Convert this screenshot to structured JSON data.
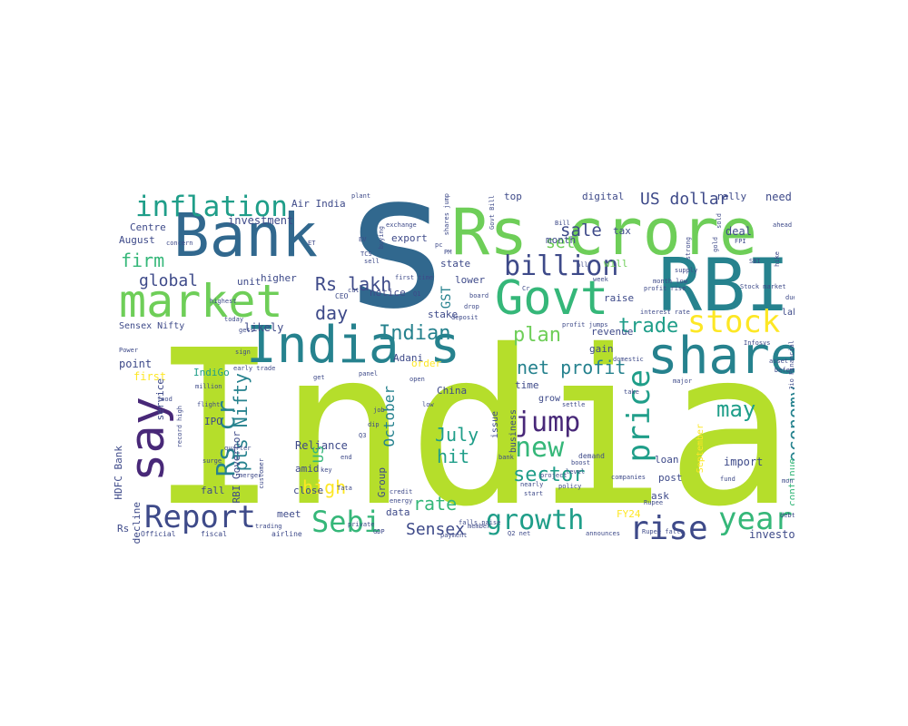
{
  "palette": {
    "lime": "#b5de2b",
    "green": "#6ece58",
    "mint": "#35b779",
    "teal": "#1f9e89",
    "cyan": "#26828e",
    "blue": "#31688e",
    "indigo": "#3e4a89",
    "purple": "#482878",
    "dark": "#440154",
    "yellow": "#fde725"
  },
  "words": [
    {
      "id": "w0",
      "text": "India",
      "color": "lime"
    },
    {
      "id": "w1",
      "text": "s",
      "color": "blue"
    },
    {
      "id": "w2",
      "text": "Bank",
      "color": "blue"
    },
    {
      "id": "w3",
      "text": "Rs crore",
      "color": "green"
    },
    {
      "id": "w4",
      "text": "RBI",
      "color": "cyan"
    },
    {
      "id": "w5",
      "text": "Govt",
      "color": "mint"
    },
    {
      "id": "w6",
      "text": "market",
      "color": "green"
    },
    {
      "id": "w7",
      "text": "India s",
      "color": "cyan"
    },
    {
      "id": "w8",
      "text": "share",
      "color": "cyan"
    },
    {
      "id": "w9",
      "text": "say",
      "color": "purple"
    },
    {
      "id": "w10",
      "text": "inflation",
      "color": "teal"
    },
    {
      "id": "w11",
      "text": "billion",
      "color": "indigo"
    },
    {
      "id": "w12",
      "text": "stock",
      "color": "yellow"
    },
    {
      "id": "w13",
      "text": "Report",
      "color": "indigo"
    },
    {
      "id": "w14",
      "text": "growth",
      "color": "teal"
    },
    {
      "id": "w15",
      "text": "Sebi",
      "color": "mint"
    },
    {
      "id": "w16",
      "text": "rise",
      "color": "indigo"
    },
    {
      "id": "w17",
      "text": "year",
      "color": "mint"
    },
    {
      "id": "w18",
      "text": "price",
      "color": "teal"
    },
    {
      "id": "w19",
      "text": "jump",
      "color": "purple"
    },
    {
      "id": "w20",
      "text": "new",
      "color": "mint"
    },
    {
      "id": "w21",
      "text": "Rs cr",
      "color": "cyan"
    },
    {
      "id": "w22",
      "text": "global",
      "color": "indigo"
    },
    {
      "id": "w23",
      "text": "Rs lakh",
      "color": "indigo"
    },
    {
      "id": "w24",
      "text": "US dollar",
      "color": "indigo"
    },
    {
      "id": "w25",
      "text": "sale",
      "color": "indigo"
    },
    {
      "id": "w26",
      "text": "firm",
      "color": "mint"
    },
    {
      "id": "w27",
      "text": "trade",
      "color": "teal"
    },
    {
      "id": "w28",
      "text": "net profit",
      "color": "cyan"
    },
    {
      "id": "w29",
      "text": "Indian",
      "color": "cyan"
    },
    {
      "id": "w30",
      "text": "plan",
      "color": "green"
    },
    {
      "id": "w31",
      "text": "economy",
      "color": "cyan"
    },
    {
      "id": "w32",
      "text": "may",
      "color": "teal"
    },
    {
      "id": "w33",
      "text": "sector",
      "color": "teal"
    },
    {
      "id": "w34",
      "text": "Sensex",
      "color": "indigo"
    },
    {
      "id": "w35",
      "text": "rate",
      "color": "mint"
    },
    {
      "id": "w36",
      "text": "high",
      "color": "yellow"
    },
    {
      "id": "w37",
      "text": "July",
      "color": "teal"
    },
    {
      "id": "w38",
      "text": "hit",
      "color": "teal"
    },
    {
      "id": "w39",
      "text": "day",
      "color": "indigo"
    },
    {
      "id": "w40",
      "text": "set",
      "color": "green"
    },
    {
      "id": "w41",
      "text": "investment",
      "color": "indigo"
    },
    {
      "id": "w42",
      "text": "Centre",
      "color": "indigo"
    },
    {
      "id": "w43",
      "text": "August",
      "color": "indigo"
    },
    {
      "id": "w44",
      "text": "Air India",
      "color": "indigo"
    },
    {
      "id": "w45",
      "text": "export",
      "color": "indigo"
    },
    {
      "id": "w46",
      "text": "top",
      "color": "indigo"
    },
    {
      "id": "w47",
      "text": "digital",
      "color": "indigo"
    },
    {
      "id": "w48",
      "text": "rally",
      "color": "indigo"
    },
    {
      "id": "w49",
      "text": "need",
      "color": "indigo"
    },
    {
      "id": "w50",
      "text": "state",
      "color": "indigo"
    },
    {
      "id": "w51",
      "text": "lower",
      "color": "indigo"
    },
    {
      "id": "w52",
      "text": "month",
      "color": "indigo"
    },
    {
      "id": "w53",
      "text": "tax",
      "color": "indigo"
    },
    {
      "id": "w54",
      "text": "deal",
      "color": "indigo"
    },
    {
      "id": "w55",
      "text": "will",
      "color": "green"
    },
    {
      "id": "w56",
      "text": "raise",
      "color": "indigo"
    },
    {
      "id": "w57",
      "text": "higher",
      "color": "indigo"
    },
    {
      "id": "w58",
      "text": "unit",
      "color": "indigo"
    },
    {
      "id": "w59",
      "text": "likely",
      "color": "indigo"
    },
    {
      "id": "w60",
      "text": "Sensex Nifty",
      "color": "indigo"
    },
    {
      "id": "w61",
      "text": "notice",
      "color": "indigo"
    },
    {
      "id": "w62",
      "text": "stake",
      "color": "indigo"
    },
    {
      "id": "w63",
      "text": "Adani",
      "color": "indigo"
    },
    {
      "id": "w64",
      "text": "gain",
      "color": "indigo"
    },
    {
      "id": "w65",
      "text": "revenue",
      "color": "indigo"
    },
    {
      "id": "w66",
      "text": "lakh crore",
      "color": "indigo"
    },
    {
      "id": "w67",
      "text": "point",
      "color": "indigo"
    },
    {
      "id": "w68",
      "text": "first",
      "color": "yellow"
    },
    {
      "id": "w69",
      "text": "IndiGo",
      "color": "teal"
    },
    {
      "id": "w70",
      "text": "order",
      "color": "yellow"
    },
    {
      "id": "w71",
      "text": "time",
      "color": "indigo"
    },
    {
      "id": "w72",
      "text": "grow",
      "color": "indigo"
    },
    {
      "id": "w73",
      "text": "issue",
      "color": "indigo"
    },
    {
      "id": "w74",
      "text": "business",
      "color": "indigo"
    },
    {
      "id": "w75",
      "text": "September",
      "color": "yellow"
    },
    {
      "id": "w76",
      "text": "loan",
      "color": "indigo"
    },
    {
      "id": "w77",
      "text": "import",
      "color": "indigo"
    },
    {
      "id": "w78",
      "text": "continue",
      "color": "mint"
    },
    {
      "id": "w79",
      "text": "post",
      "color": "indigo"
    },
    {
      "id": "w80",
      "text": "ask",
      "color": "indigo"
    },
    {
      "id": "w81",
      "text": "China",
      "color": "indigo"
    },
    {
      "id": "w82",
      "text": "Reliance",
      "color": "indigo"
    },
    {
      "id": "w83",
      "text": "amid",
      "color": "indigo"
    },
    {
      "id": "w84",
      "text": "close",
      "color": "indigo"
    },
    {
      "id": "w85",
      "text": "IPO",
      "color": "indigo"
    },
    {
      "id": "w86",
      "text": "fall",
      "color": "indigo"
    },
    {
      "id": "w87",
      "text": "decline",
      "color": "indigo"
    },
    {
      "id": "w88",
      "text": "meet",
      "color": "indigo"
    },
    {
      "id": "w89",
      "text": "data",
      "color": "indigo"
    },
    {
      "id": "w90",
      "text": "investor",
      "color": "indigo"
    },
    {
      "id": "w91",
      "text": "FY24",
      "color": "yellow"
    },
    {
      "id": "w92",
      "text": "Group",
      "color": "indigo"
    },
    {
      "id": "w93",
      "text": "pts Nifty",
      "color": "cyan"
    },
    {
      "id": "w94",
      "text": "October",
      "color": "cyan"
    },
    {
      "id": "w95",
      "text": "GST",
      "color": "cyan"
    },
    {
      "id": "w96",
      "text": "HDFC Bank",
      "color": "indigo"
    },
    {
      "id": "w97",
      "text": "service",
      "color": "indigo"
    },
    {
      "id": "w98",
      "text": "RBI Governor",
      "color": "indigo"
    },
    {
      "id": "w99",
      "text": "US",
      "color": "mint"
    },
    {
      "id": "w100",
      "text": "Rs",
      "color": "indigo"
    },
    {
      "id": "w101",
      "text": "Official",
      "color": "indigo"
    },
    {
      "id": "w102",
      "text": "fiscal",
      "color": "indigo"
    },
    {
      "id": "w103",
      "text": "airline",
      "color": "indigo"
    },
    {
      "id": "w104",
      "text": "CEO",
      "color": "indigo"
    },
    {
      "id": "w105",
      "text": "exchange",
      "color": "indigo"
    },
    {
      "id": "w106",
      "text": "board",
      "color": "indigo"
    },
    {
      "id": "w107",
      "text": "drop",
      "color": "indigo"
    },
    {
      "id": "w108",
      "text": "deposit",
      "color": "indigo"
    },
    {
      "id": "w109",
      "text": "interest rate",
      "color": "indigo"
    },
    {
      "id": "w110",
      "text": "Stock market",
      "color": "indigo"
    },
    {
      "id": "w111",
      "text": "profit rise",
      "color": "indigo"
    },
    {
      "id": "w112",
      "text": "profit jumps",
      "color": "indigo"
    },
    {
      "id": "w113",
      "text": "Infosys",
      "color": "indigo"
    },
    {
      "id": "w114",
      "text": "Power",
      "color": "indigo"
    },
    {
      "id": "w115",
      "text": "sign",
      "color": "indigo"
    },
    {
      "id": "w116",
      "text": "demand",
      "color": "indigo"
    },
    {
      "id": "w117",
      "text": "energy",
      "color": "indigo"
    },
    {
      "id": "w118",
      "text": "credit",
      "color": "indigo"
    },
    {
      "id": "w119",
      "text": "merger",
      "color": "indigo"
    },
    {
      "id": "w120",
      "text": "flight",
      "color": "indigo"
    },
    {
      "id": "w121",
      "text": "surge",
      "color": "indigo"
    },
    {
      "id": "w122",
      "text": "quarter",
      "color": "indigo"
    },
    {
      "id": "w123",
      "text": "trading",
      "color": "indigo"
    },
    {
      "id": "w124",
      "text": "customer",
      "color": "indigo"
    },
    {
      "id": "w125",
      "text": "falls paise",
      "color": "indigo"
    },
    {
      "id": "w126",
      "text": "companies",
      "color": "indigo"
    },
    {
      "id": "w127",
      "text": "Rupee falls",
      "color": "indigo"
    },
    {
      "id": "w128",
      "text": "payment",
      "color": "indigo"
    },
    {
      "id": "w129",
      "text": "announces",
      "color": "indigo"
    },
    {
      "id": "w130",
      "text": "start",
      "color": "indigo"
    },
    {
      "id": "w131",
      "text": "nearly",
      "color": "indigo"
    },
    {
      "id": "w132",
      "text": "project",
      "color": "indigo"
    },
    {
      "id": "w133",
      "text": "policy",
      "color": "indigo"
    },
    {
      "id": "w134",
      "text": "level",
      "color": "indigo"
    },
    {
      "id": "w135",
      "text": "boost",
      "color": "indigo"
    },
    {
      "id": "w136",
      "text": "fund",
      "color": "indigo"
    },
    {
      "id": "w137",
      "text": "asset",
      "color": "indigo"
    },
    {
      "id": "w138",
      "text": "month high",
      "color": "indigo"
    },
    {
      "id": "w139",
      "text": "Tata",
      "color": "indigo"
    },
    {
      "id": "w140",
      "text": "panel",
      "color": "indigo"
    },
    {
      "id": "w141",
      "text": "early trade",
      "color": "indigo"
    },
    {
      "id": "w142",
      "text": "million",
      "color": "indigo"
    },
    {
      "id": "w143",
      "text": "major",
      "color": "indigo"
    },
    {
      "id": "w144",
      "text": "Jio Financial",
      "color": "indigo"
    },
    {
      "id": "w145",
      "text": "domestic",
      "color": "indigo"
    },
    {
      "id": "w146",
      "text": "month low",
      "color": "indigo"
    },
    {
      "id": "w147",
      "text": "sold",
      "color": "indigo"
    },
    {
      "id": "w148",
      "text": "supply",
      "color": "indigo"
    },
    {
      "id": "w149",
      "text": "plant",
      "color": "indigo"
    },
    {
      "id": "w150",
      "text": "shares jump",
      "color": "indigo"
    },
    {
      "id": "w151",
      "text": "Bill",
      "color": "indigo"
    },
    {
      "id": "w152",
      "text": "sell",
      "color": "indigo"
    },
    {
      "id": "w153",
      "text": "highest",
      "color": "indigo"
    },
    {
      "id": "w154",
      "text": "today",
      "color": "indigo"
    },
    {
      "id": "w155",
      "text": "gets",
      "color": "indigo"
    },
    {
      "id": "w156",
      "text": "concern",
      "color": "indigo"
    },
    {
      "id": "w157",
      "text": "strong",
      "color": "indigo"
    },
    {
      "id": "w158",
      "text": "gold",
      "color": "indigo"
    },
    {
      "id": "w159",
      "text": "hike",
      "color": "indigo"
    },
    {
      "id": "w160",
      "text": "record high",
      "color": "indigo"
    },
    {
      "id": "w161",
      "text": "open",
      "color": "indigo"
    },
    {
      "id": "w162",
      "text": "due",
      "color": "indigo"
    },
    {
      "id": "w163",
      "text": "settle",
      "color": "indigo"
    },
    {
      "id": "w164",
      "text": "food",
      "color": "indigo"
    },
    {
      "id": "w165",
      "text": "Rupee",
      "color": "indigo"
    },
    {
      "id": "w166",
      "text": "Q2 net",
      "color": "indigo"
    },
    {
      "id": "w167",
      "text": "low",
      "color": "indigo"
    },
    {
      "id": "w168",
      "text": "member",
      "color": "indigo"
    },
    {
      "id": "w169",
      "text": "Defence",
      "color": "indigo"
    },
    {
      "id": "w170",
      "text": "debt",
      "color": "indigo"
    },
    {
      "id": "w171",
      "text": "ahead",
      "color": "indigo"
    },
    {
      "id": "w172",
      "text": "bank",
      "color": "indigo"
    },
    {
      "id": "w173",
      "text": "key",
      "color": "indigo"
    },
    {
      "id": "w174",
      "text": "end",
      "color": "indigo"
    },
    {
      "id": "w175",
      "text": "cut",
      "color": "indigo"
    },
    {
      "id": "w176",
      "text": "buying",
      "color": "indigo"
    },
    {
      "id": "w177",
      "text": "first time",
      "color": "indigo"
    },
    {
      "id": "w178",
      "text": "private",
      "color": "indigo"
    },
    {
      "id": "w179",
      "text": "GDP",
      "color": "indigo"
    },
    {
      "id": "w180",
      "text": "take",
      "color": "indigo"
    },
    {
      "id": "w181",
      "text": "Q1",
      "color": "indigo"
    },
    {
      "id": "w182",
      "text": "FPI",
      "color": "indigo"
    },
    {
      "id": "w183",
      "text": "SBI",
      "color": "indigo"
    },
    {
      "id": "w184",
      "text": "all",
      "color": "indigo"
    },
    {
      "id": "w185",
      "text": "week",
      "color": "indigo"
    },
    {
      "id": "w186",
      "text": "Cr",
      "color": "indigo"
    },
    {
      "id": "w187",
      "text": "ET",
      "color": "indigo"
    },
    {
      "id": "w188",
      "text": "pc",
      "color": "indigo"
    },
    {
      "id": "w189",
      "text": "PM",
      "color": "indigo"
    },
    {
      "id": "w190",
      "text": "EV",
      "color": "indigo"
    },
    {
      "id": "w191",
      "text": "TCS",
      "color": "indigo"
    },
    {
      "id": "w192",
      "text": "Q3",
      "color": "indigo"
    },
    {
      "id": "w193",
      "text": "dip",
      "color": "indigo"
    },
    {
      "id": "w194",
      "text": "job",
      "color": "indigo"
    },
    {
      "id": "w195",
      "text": "Govt Bill",
      "color": "indigo"
    },
    {
      "id": "w196",
      "text": "get",
      "color": "indigo"
    }
  ]
}
